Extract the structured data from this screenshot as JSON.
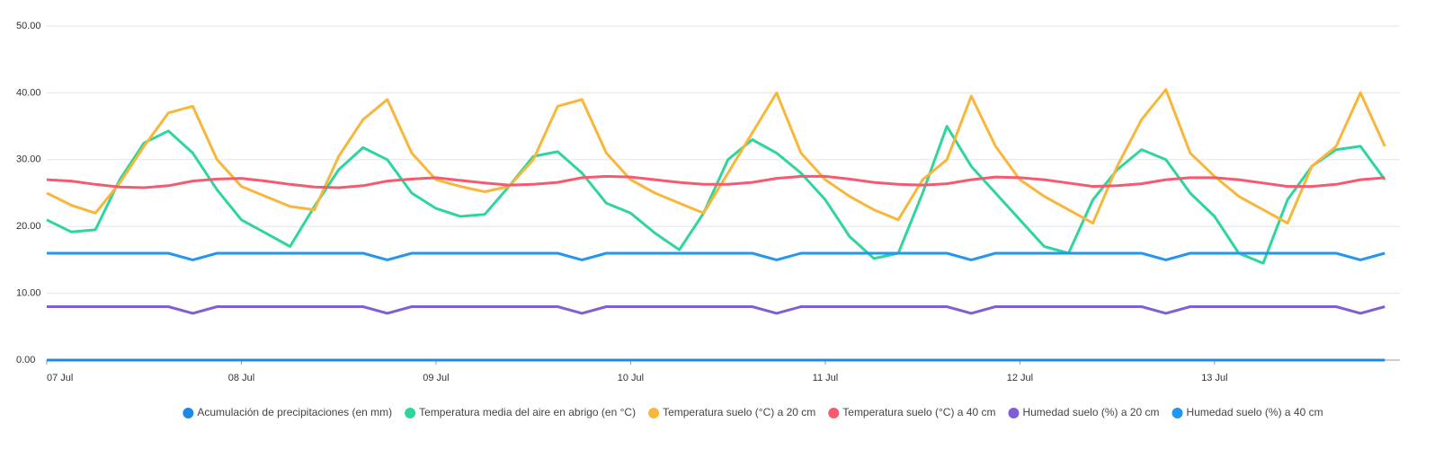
{
  "chart_data": {
    "type": "line",
    "categories": [
      "07 Jul",
      null,
      null,
      null,
      null,
      null,
      null,
      null,
      "08 Jul",
      null,
      null,
      null,
      null,
      null,
      null,
      null,
      "09 Jul",
      null,
      null,
      null,
      null,
      null,
      null,
      null,
      "10 Jul",
      null,
      null,
      null,
      null,
      null,
      null,
      null,
      "11 Jul",
      null,
      null,
      null,
      null,
      null,
      null,
      null,
      "12 Jul",
      null,
      null,
      null,
      null,
      null,
      null,
      null,
      "13 Jul",
      null,
      null,
      null,
      null,
      null,
      null,
      null
    ],
    "ylim": [
      0,
      50
    ],
    "yticks": [
      {
        "value": 0,
        "label": "0.00"
      },
      {
        "value": 10,
        "label": "10.00"
      },
      {
        "value": 20,
        "label": "20.00"
      },
      {
        "value": 30,
        "label": "30.00"
      },
      {
        "value": 40,
        "label": "40.00"
      },
      {
        "value": 50,
        "label": "50.00"
      }
    ],
    "grid": true,
    "legend": "bottom",
    "series": [
      {
        "name": "Acumulación de precipitaciones (en mm)",
        "color": "#1e88e5",
        "values": [
          0,
          0,
          0,
          0,
          0,
          0,
          0,
          0,
          0,
          0,
          0,
          0,
          0,
          0,
          0,
          0,
          0,
          0,
          0,
          0,
          0,
          0,
          0,
          0,
          0,
          0,
          0,
          0,
          0,
          0,
          0,
          0,
          0,
          0,
          0,
          0,
          0,
          0,
          0,
          0,
          0,
          0,
          0,
          0,
          0,
          0,
          0,
          0,
          0,
          0,
          0,
          0,
          0,
          0,
          0,
          0
        ]
      },
      {
        "name": "Temperatura media del aire en abrigo (en °C)",
        "color": "#2ed69b",
        "values": [
          21,
          19.2,
          19.5,
          27,
          32.5,
          34.3,
          31,
          25.5,
          21,
          19,
          17,
          23,
          28.5,
          31.8,
          30,
          25,
          22.7,
          21.5,
          21.8,
          26,
          30.5,
          31.2,
          28,
          23.5,
          22,
          19,
          16.5,
          22,
          30,
          33,
          31,
          28,
          24,
          18.5,
          15.2,
          16,
          25,
          35,
          29,
          25,
          21,
          17,
          16,
          24,
          28.5,
          31.5,
          30,
          25,
          21.5,
          16,
          14.5,
          24,
          29,
          31.5,
          32,
          27
        ]
      },
      {
        "name": "Temperatura suelo (°C) a 20 cm",
        "color": "#f8b73a",
        "values": [
          25,
          23.2,
          22,
          26.5,
          32,
          37,
          38,
          30,
          26,
          24.5,
          23,
          22.5,
          30.5,
          36,
          39,
          31,
          27,
          26,
          25.2,
          26,
          30,
          38,
          39,
          31,
          27,
          25,
          23.5,
          22,
          28,
          34,
          40,
          31,
          27,
          24.5,
          22.5,
          21,
          27,
          30,
          39.5,
          32,
          27,
          24.5,
          22.5,
          20.5,
          29,
          36,
          40.5,
          31,
          27.5,
          24.5,
          22.5,
          20.5,
          29,
          32,
          40,
          32
        ]
      },
      {
        "name": "Temperatura suelo (°C) a 40 cm",
        "color": "#f65a6f",
        "values": [
          27,
          26.8,
          26.3,
          25.9,
          25.8,
          26.1,
          26.8,
          27.1,
          27.2,
          26.8,
          26.3,
          25.9,
          25.8,
          26.1,
          26.8,
          27.1,
          27.3,
          26.9,
          26.5,
          26.2,
          26.3,
          26.6,
          27.3,
          27.5,
          27.4,
          27,
          26.6,
          26.3,
          26.3,
          26.6,
          27.2,
          27.5,
          27.5,
          27.1,
          26.6,
          26.3,
          26.2,
          26.4,
          27,
          27.4,
          27.3,
          27,
          26.5,
          26,
          26.1,
          26.4,
          27,
          27.3,
          27.3,
          27,
          26.5,
          26,
          26,
          26.3,
          27,
          27.3
        ]
      },
      {
        "name": "Humedad suelo (%) a 20 cm",
        "color": "#7e5fd6",
        "values": [
          8,
          8,
          8,
          8,
          8,
          8,
          7,
          8,
          8,
          8,
          8,
          8,
          8,
          8,
          7,
          8,
          8,
          8,
          8,
          8,
          8,
          8,
          7,
          8,
          8,
          8,
          8,
          8,
          8,
          8,
          7,
          8,
          8,
          8,
          8,
          8,
          8,
          8,
          7,
          8,
          8,
          8,
          8,
          8,
          8,
          8,
          7,
          8,
          8,
          8,
          8,
          8,
          8,
          8,
          7,
          8
        ]
      },
      {
        "name": "Humedad suelo (%) a 40 cm",
        "color": "#2196f3",
        "values": [
          16,
          16,
          16,
          16,
          16,
          16,
          15,
          16,
          16,
          16,
          16,
          16,
          16,
          16,
          15,
          16,
          16,
          16,
          16,
          16,
          16,
          16,
          15,
          16,
          16,
          16,
          16,
          16,
          16,
          16,
          15,
          16,
          16,
          16,
          16,
          16,
          16,
          16,
          15,
          16,
          16,
          16,
          16,
          16,
          16,
          16,
          15,
          16,
          16,
          16,
          16,
          16,
          16,
          16,
          15,
          16
        ]
      }
    ]
  }
}
